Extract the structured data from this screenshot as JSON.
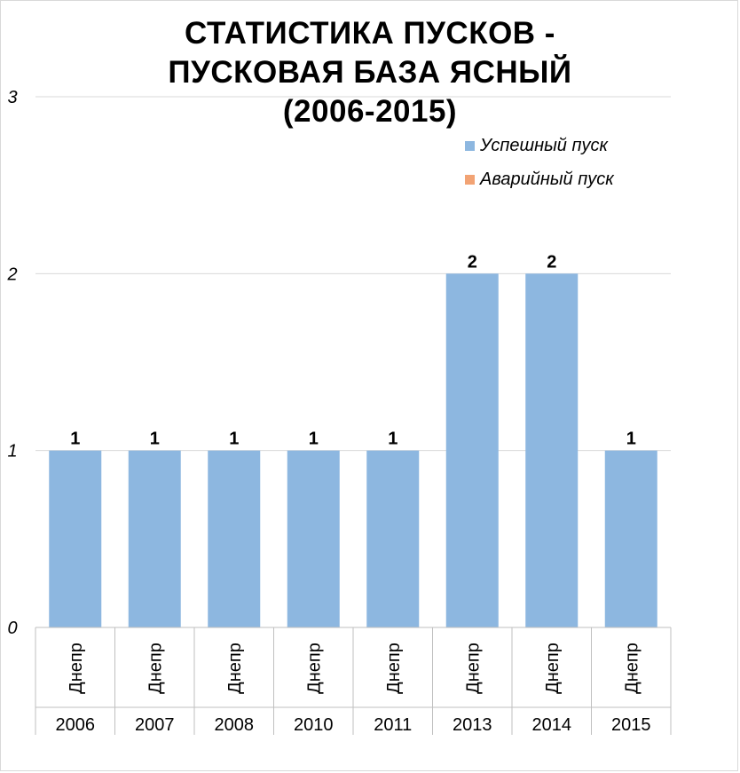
{
  "chart_data": {
    "type": "bar",
    "title_lines": [
      "СТАТИСТИКА ПУСКОВ -",
      "ПУСКОВАЯ БАЗА ЯСНЫЙ",
      "(2006-2015)"
    ],
    "category_groups": [
      "Днепр",
      "Днепр",
      "Днепр",
      "Днепр",
      "Днепр",
      "Днепр",
      "Днепр",
      "Днепр"
    ],
    "categories": [
      "2006",
      "2007",
      "2008",
      "2010",
      "2011",
      "2013",
      "2014",
      "2015"
    ],
    "series": [
      {
        "name": "Успешный пуск",
        "color": "#8db7e0",
        "values": [
          1,
          1,
          1,
          1,
          1,
          2,
          2,
          1
        ]
      },
      {
        "name": "Аварийный пуск",
        "color": "#f2a374",
        "values": [
          0,
          0,
          0,
          0,
          0,
          0,
          0,
          0
        ]
      }
    ],
    "data_labels": [
      "1",
      "1",
      "1",
      "1",
      "1",
      "2",
      "2",
      "1"
    ],
    "y_ticks": [
      "0",
      "1",
      "2",
      "3"
    ],
    "ylim": [
      0,
      3
    ],
    "grid": true,
    "legend_position": "top-right"
  }
}
